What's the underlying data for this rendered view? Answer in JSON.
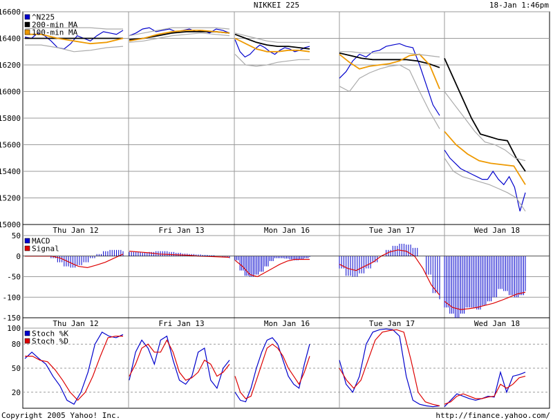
{
  "header": {
    "title": "NIKKEI 225",
    "timestamp": "18-Jan 1:46pm"
  },
  "footer": {
    "copyright": "Copyright 2005 Yahoo! Inc.",
    "url": "http://finance.yahoo.com/"
  },
  "colors": {
    "price": "#0000cc",
    "ma200": "#000000",
    "ma100": "#ee9900",
    "band": "#aaaaaa",
    "macd": "#0000cc",
    "signal": "#dd0000",
    "stoch_k": "#0000cc",
    "stoch_d": "#dd0000",
    "grid": "#999999"
  },
  "chart_data": [
    {
      "type": "line",
      "title": "NIKKEI 225",
      "ylim": [
        15000,
        16600
      ],
      "y_ticks": [
        15000,
        15200,
        15400,
        15600,
        15800,
        16000,
        16200,
        16400,
        16600
      ],
      "grid": true,
      "legend": "top-left",
      "days": [
        "Thu Jan 12",
        "Fri Jan 13",
        "Mon Jan 16",
        "Tue Jan 17",
        "Wed Jan 18"
      ],
      "series": [
        {
          "name": "^N225",
          "role": "price",
          "days": [
            [
              16410,
              16400,
              16440,
              16420,
              16380,
              16330,
              16320,
              16360,
              16420,
              16400,
              16380,
              16420,
              16450,
              16440,
              16430,
              16460
            ],
            [
              16420,
              16440,
              16470,
              16480,
              16450,
              16460,
              16470,
              16450,
              16460,
              16470,
              16450,
              16460,
              16440,
              16470,
              16460,
              16440
            ],
            [
              16390,
              16300,
              16260,
              16280,
              16320,
              16350,
              16330,
              16300,
              16280,
              16310,
              16330,
              16320,
              16300,
              16310,
              16330,
              16340
            ],
            [
              16100,
              16150,
              16230,
              16280,
              16260,
              16300,
              16310,
              16340,
              16350,
              16360,
              16340,
              16330,
              16200,
              16050,
              15900,
              15820
            ],
            [
              15560,
              15500,
              15460,
              15420,
              15400,
              15380,
              15360,
              15340,
              15340,
              15400,
              15340,
              15300,
              15360,
              15280,
              15100,
              15240
            ]
          ]
        },
        {
          "name": "200-min MA",
          "role": "ma200",
          "days": [
            [
              16400,
              16400,
              16400,
              16400,
              16400,
              16400,
              16400
            ],
            [
              16390,
              16400,
              16420,
              16440,
              16450,
              16450,
              16450,
              16440
            ],
            [
              16430,
              16400,
              16370,
              16350,
              16340,
              16340,
              16330,
              16320
            ],
            [
              16290,
              16270,
              16250,
              16240,
              16240,
              16240,
              16240,
              16230,
              16210,
              16180
            ],
            [
              16250,
              16100,
              15950,
              15800,
              15680,
              15660,
              15640,
              15630,
              15500,
              15400
            ]
          ]
        },
        {
          "name": "100-min MA",
          "role": "ma100",
          "days": [
            [
              16430,
              16430,
              16400,
              16380,
              16360,
              16370,
              16400
            ],
            [
              16380,
              16400,
              16430,
              16450,
              16460,
              16460,
              16450,
              16440
            ],
            [
              16400,
              16360,
              16320,
              16300,
              16300,
              16310,
              16310,
              16300
            ],
            [
              16280,
              16220,
              16170,
              16190,
              16200,
              16210,
              16230,
              16270,
              16280,
              16200,
              16020
            ],
            [
              15700,
              15600,
              15530,
              15480,
              15460,
              15450,
              15440,
              15300
            ]
          ]
        },
        {
          "name": "Upper band",
          "role": "band",
          "days": [
            [
              16470,
              16480,
              16480,
              16480,
              16480,
              16470,
              16470
            ],
            [
              16420,
              16440,
              16460,
              16480,
              16480,
              16480,
              16480,
              16470
            ],
            [
              16440,
              16420,
              16400,
              16380,
              16370,
              16370,
              16370,
              16370
            ],
            [
              16300,
              16300,
              16290,
              16290,
              16290,
              16290,
              16290,
              16280,
              16270,
              16260
            ],
            [
              16000,
              15900,
              15800,
              15700,
              15620,
              15600,
              15560,
              15500,
              15480
            ]
          ]
        },
        {
          "name": "Lower band",
          "role": "band",
          "days": [
            [
              16350,
              16350,
              16330,
              16300,
              16310,
              16330,
              16340
            ],
            [
              16370,
              16380,
              16400,
              16420,
              16430,
              16440,
              16430,
              16420
            ],
            [
              16280,
              16200,
              16190,
              16200,
              16220,
              16230,
              16240,
              16240
            ],
            [
              16040,
              16000,
              16100,
              16140,
              16170,
              16190,
              16200,
              16160,
              16000,
              15850,
              15720
            ],
            [
              15500,
              15400,
              15360,
              15340,
              15320,
              15300,
              15270,
              15240,
              15200,
              15100
            ]
          ]
        }
      ]
    },
    {
      "type": "bar",
      "title": "MACD",
      "ylim": [
        -150,
        50
      ],
      "y_ticks": [
        -150,
        -100,
        -50,
        0,
        50
      ],
      "grid": true,
      "legend": "top-left",
      "days": [
        "Thu Jan 12",
        "Fri Jan 13",
        "Mon Jan 16",
        "Tue Jan 17",
        "Wed Jan 18"
      ],
      "series": [
        {
          "name": "MACD",
          "role": "macd",
          "days": [
            [
              0,
              0,
              0,
              0,
              -5,
              -15,
              -25,
              -28,
              -22,
              -15,
              -5,
              5,
              12,
              15,
              15,
              12
            ],
            [
              10,
              10,
              8,
              10,
              12,
              12,
              10,
              8,
              6,
              5,
              4,
              3,
              2,
              0,
              -3,
              -5
            ],
            [
              -10,
              -35,
              -48,
              -50,
              -45,
              -38,
              -25,
              -12,
              -5,
              -5,
              -6,
              -8,
              -10,
              -8,
              -5,
              -2
            ],
            [
              -30,
              -48,
              -50,
              -42,
              -30,
              -15,
              0,
              15,
              25,
              30,
              28,
              20,
              0,
              -45,
              -90,
              -105
            ],
            [
              -125,
              -140,
              -150,
              -140,
              -125,
              -125,
              -130,
              -120,
              -110,
              -100,
              -80,
              -85,
              -95,
              -100,
              -95,
              -85
            ]
          ]
        },
        {
          "name": "Signal",
          "role": "signal",
          "days": [
            [
              0,
              0,
              0,
              0,
              -5,
              -15,
              -25,
              -28,
              -22,
              -15,
              -5,
              5
            ],
            [
              12,
              10,
              8,
              5,
              4,
              3,
              2,
              0,
              -1,
              -2,
              -3
            ],
            [
              -10,
              -25,
              -45,
              -50,
              -40,
              -30,
              -20,
              -12,
              -8,
              -8,
              -8
            ],
            [
              -20,
              -30,
              -35,
              -25,
              -15,
              0,
              10,
              15,
              12,
              0,
              -30,
              -70,
              -95
            ],
            [
              -110,
              -125,
              -130,
              -128,
              -125,
              -120,
              -115,
              -108,
              -100,
              -92,
              -88
            ]
          ]
        }
      ]
    },
    {
      "type": "line",
      "title": "Stochastic",
      "ylim": [
        0,
        100
      ],
      "y_ticks": [
        20,
        50,
        80,
        100
      ],
      "grid": true,
      "legend": "top-left",
      "days": [
        "Thu Jan 12",
        "Fri Jan 13",
        "Mon Jan 16",
        "Tue Jan 17",
        "Wed Jan 18"
      ],
      "series": [
        {
          "name": "Stoch %K",
          "role": "stoch_k",
          "days": [
            [
              62,
              70,
              62,
              55,
              40,
              28,
              10,
              5,
              20,
              45,
              80,
              95,
              90,
              88,
              92
            ],
            [
              35,
              70,
              85,
              75,
              55,
              85,
              90,
              60,
              35,
              30,
              40,
              70,
              75,
              35,
              25,
              50,
              60
            ],
            [
              20,
              10,
              8,
              25,
              50,
              70,
              85,
              88,
              80,
              60,
              40,
              30,
              25,
              55,
              80
            ],
            [
              60,
              30,
              20,
              40,
              80,
              95,
              98,
              99,
              98,
              90,
              40,
              10,
              5,
              3,
              2,
              3
            ],
            [
              2,
              10,
              18,
              15,
              12,
              10,
              12,
              15,
              14,
              45,
              20,
              40,
              42,
              45
            ]
          ]
        },
        {
          "name": "Stoch %D",
          "role": "stoch_d",
          "days": [
            [
              65,
              65,
              60,
              58,
              48,
              35,
              20,
              10,
              20,
              40,
              65,
              88,
              90,
              90
            ],
            [
              40,
              55,
              75,
              80,
              70,
              70,
              85,
              70,
              45,
              35,
              38,
              45,
              60,
              55,
              40,
              45,
              55
            ],
            [
              40,
              20,
              12,
              15,
              35,
              55,
              75,
              80,
              75,
              65,
              50,
              40,
              30,
              45,
              65
            ],
            [
              50,
              35,
              25,
              35,
              60,
              85,
              95,
              97,
              98,
              95,
              60,
              20,
              8,
              5,
              3
            ],
            [
              5,
              8,
              15,
              18,
              15,
              12,
              12,
              14,
              15,
              30,
              25,
              30,
              38,
              40
            ]
          ]
        }
      ]
    }
  ],
  "panels": [
    {
      "legend": [
        {
          "label": "^N225",
          "role": "price"
        },
        {
          "label": "200-min MA",
          "role": "ma200"
        },
        {
          "label": "100-min MA",
          "role": "ma100"
        }
      ]
    },
    {
      "legend": [
        {
          "label": "MACD",
          "role": "macd"
        },
        {
          "label": "Signal",
          "role": "signal"
        }
      ]
    },
    {
      "legend": [
        {
          "label": "Stoch %K",
          "role": "stoch_k"
        },
        {
          "label": "Stoch %D",
          "role": "stoch_d"
        }
      ]
    }
  ]
}
